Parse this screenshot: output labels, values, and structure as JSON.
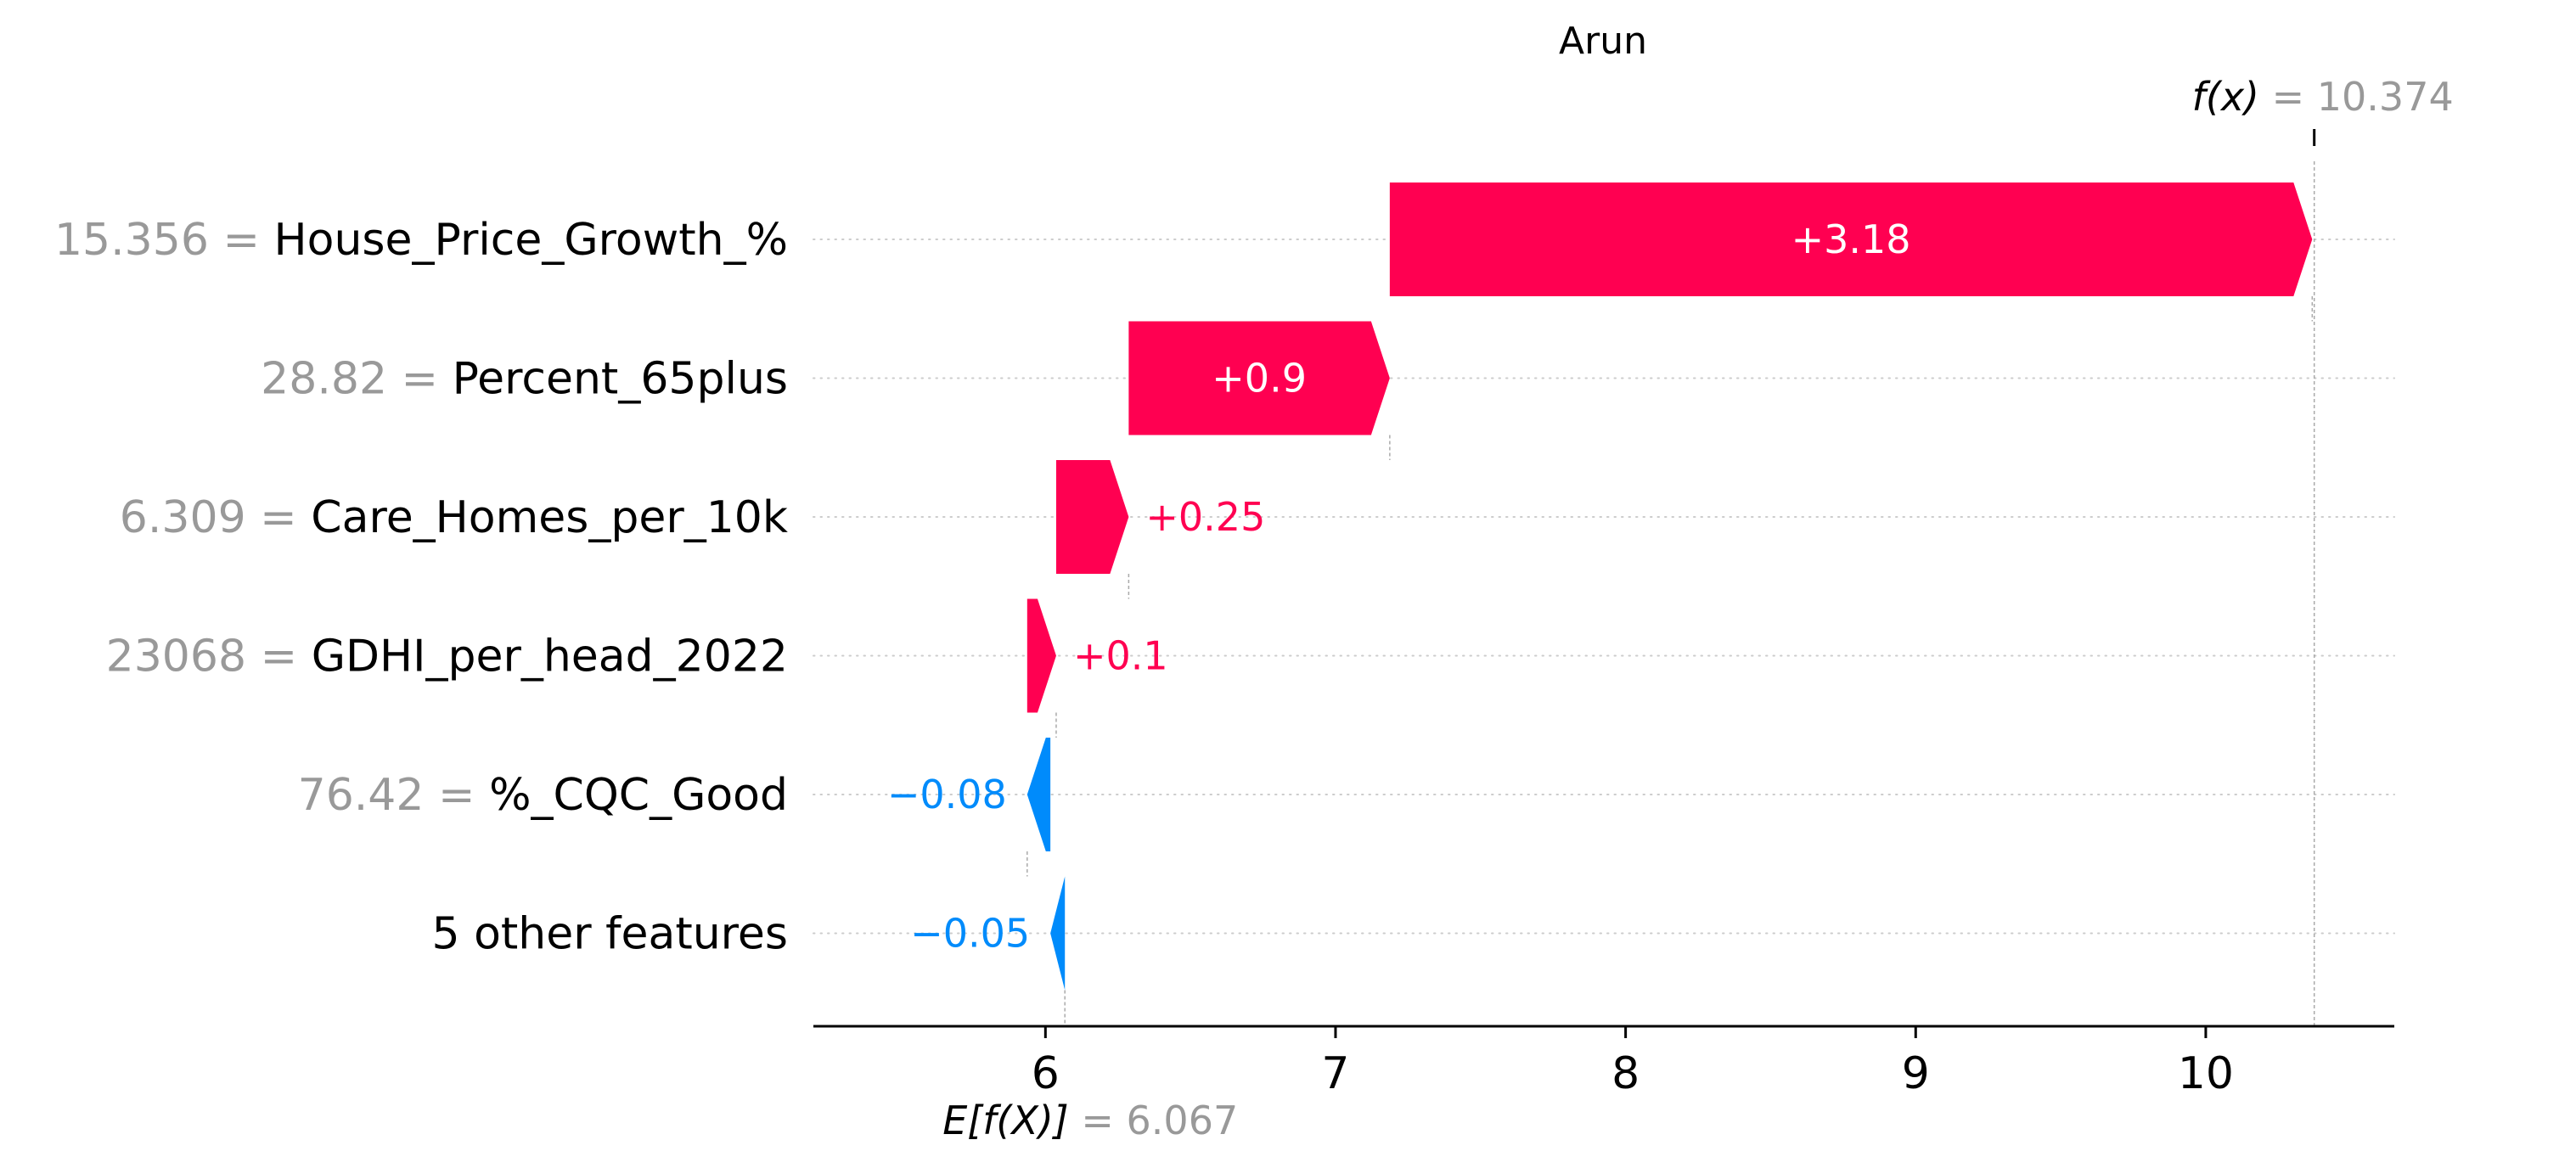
{
  "chart_data": {
    "type": "waterfall",
    "title": "Arun",
    "colors": {
      "positive": "#ff0051",
      "negative": "#008bfb",
      "value_text": "#999999"
    },
    "base_value": 6.067,
    "final_value": 10.374,
    "base_label": "E[f(X)]",
    "base_value_text": "= 6.067",
    "final_label": "f(x)",
    "final_value_text": "= 10.374",
    "xlim": [
      5.2,
      10.65
    ],
    "ticks": [
      6,
      7,
      8,
      9,
      10
    ],
    "features": [
      {
        "value": "15.356",
        "name": "House_Price_Growth_%",
        "contribution": 3.18,
        "label": "+3.18"
      },
      {
        "value": "28.82",
        "name": "Percent_65plus",
        "contribution": 0.9,
        "label": "+0.9"
      },
      {
        "value": "6.309",
        "name": "Care_Homes_per_10k",
        "contribution": 0.25,
        "label": "+0.25"
      },
      {
        "value": "23068",
        "name": "GDHI_per_head_2022",
        "contribution": 0.1,
        "label": "+0.1"
      },
      {
        "value": "76.42",
        "name": "%_CQC_Good",
        "contribution": -0.08,
        "label": "−0.08"
      },
      {
        "value": "",
        "name": "5 other features",
        "contribution": -0.05,
        "label": "−0.05"
      }
    ]
  }
}
